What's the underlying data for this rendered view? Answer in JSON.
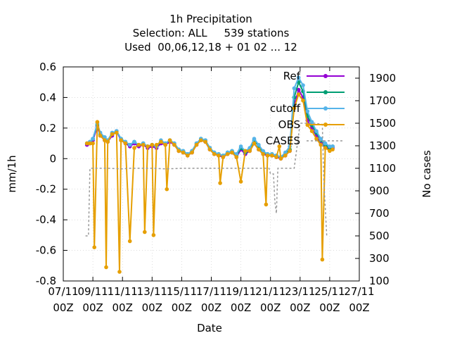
{
  "chart_data": {
    "type": "line",
    "title": [
      "1h Precipitation",
      "Selection: ALL     539 stations",
      "Used  00,06,12,18 + 01 02 ... 12"
    ],
    "xlabel": "Date",
    "ylabel": "mm/1h",
    "y2label": "No cases",
    "x_ticks": [
      {
        "day": 7,
        "line1": "07/11",
        "line2": "00Z"
      },
      {
        "day": 9,
        "line1": "09/11",
        "line2": "00Z"
      },
      {
        "day": 11,
        "line1": "11/11",
        "line2": "00Z"
      },
      {
        "day": 13,
        "line1": "13/11",
        "line2": "00Z"
      },
      {
        "day": 15,
        "line1": "15/11",
        "line2": "00Z"
      },
      {
        "day": 17,
        "line1": "17/11",
        "line2": "00Z"
      },
      {
        "day": 19,
        "line1": "19/11",
        "line2": "00Z"
      },
      {
        "day": 21,
        "line1": "21/11",
        "line2": "00Z"
      },
      {
        "day": 23,
        "line1": "23/11",
        "line2": "00Z"
      },
      {
        "day": 25,
        "line1": "25/11",
        "line2": "00Z"
      },
      {
        "day": 27,
        "line1": "27/11",
        "line2": "00Z"
      }
    ],
    "xlim": [
      7,
      27
    ],
    "ylim": [
      -0.8,
      0.6
    ],
    "y_ticks": [
      "-0.8",
      "-0.6",
      "-0.4",
      "-0.2",
      "0",
      "0.2",
      "0.4",
      "0.6"
    ],
    "y2lim": [
      100,
      2000
    ],
    "y2_ticks": [
      "100",
      "300",
      "500",
      "700",
      "900",
      "1100",
      "1300",
      "1500",
      "1700",
      "1900"
    ],
    "legend_position": "top-right",
    "series": [
      {
        "name": "Ref",
        "color": "#9400d3",
        "axis": "y",
        "x": [
          8.6,
          8.8,
          9.0,
          9.3,
          9.5,
          9.8,
          10.0,
          10.3,
          10.6,
          10.9,
          11.2,
          11.5,
          11.8,
          12.1,
          12.4,
          12.7,
          13.0,
          13.3,
          13.6,
          13.9,
          14.2,
          14.5,
          14.8,
          15.1,
          15.4,
          15.7,
          16.0,
          16.3,
          16.6,
          16.9,
          17.2,
          17.5,
          17.8,
          18.1,
          18.4,
          18.7,
          19.0,
          19.3,
          19.6,
          19.9,
          20.2,
          20.5,
          20.8,
          21.1,
          21.4,
          21.7,
          22.0,
          22.3,
          22.6,
          22.9,
          23.2,
          23.5,
          23.8,
          24.1,
          24.4,
          24.7,
          25.0,
          25.2
        ],
        "values": [
          0.09,
          0.1,
          0.12,
          0.21,
          0.15,
          0.12,
          0.11,
          0.15,
          0.18,
          0.12,
          0.1,
          0.08,
          0.1,
          0.08,
          0.09,
          0.07,
          0.08,
          0.07,
          0.1,
          0.09,
          0.11,
          0.09,
          0.05,
          0.04,
          0.02,
          0.04,
          0.09,
          0.12,
          0.11,
          0.06,
          0.03,
          0.02,
          0.01,
          0.03,
          0.04,
          0.01,
          0.06,
          0.03,
          0.05,
          0.1,
          0.06,
          0.03,
          0.02,
          0.02,
          0.01,
          0.0,
          0.02,
          0.05,
          0.35,
          0.45,
          0.4,
          0.25,
          0.2,
          0.15,
          0.1,
          0.08,
          0.06,
          0.07
        ]
      },
      {
        "name": "",
        "color": "#009e73",
        "axis": "y",
        "x": [
          8.6,
          8.8,
          9.0,
          9.3,
          9.5,
          9.8,
          10.0,
          10.3,
          10.6,
          10.9,
          11.2,
          11.5,
          11.8,
          12.1,
          12.4,
          12.7,
          13.0,
          13.3,
          13.6,
          13.9,
          14.2,
          14.5,
          14.8,
          15.1,
          15.4,
          15.7,
          16.0,
          16.3,
          16.6,
          16.9,
          17.2,
          17.5,
          17.8,
          18.1,
          18.4,
          18.7,
          19.0,
          19.3,
          19.6,
          19.9,
          20.2,
          20.5,
          20.8,
          21.1,
          21.4,
          21.7,
          22.0,
          22.3,
          22.6,
          22.9,
          23.2,
          23.5,
          23.8,
          24.1,
          24.4,
          24.7,
          25.0,
          25.2
        ],
        "values": [
          0.1,
          0.11,
          0.13,
          0.22,
          0.16,
          0.14,
          0.12,
          0.16,
          0.18,
          0.13,
          0.11,
          0.09,
          0.11,
          0.09,
          0.1,
          0.08,
          0.09,
          0.08,
          0.11,
          0.1,
          0.12,
          0.1,
          0.06,
          0.05,
          0.03,
          0.05,
          0.1,
          0.13,
          0.12,
          0.07,
          0.04,
          0.03,
          0.02,
          0.04,
          0.05,
          0.02,
          0.07,
          0.04,
          0.06,
          0.12,
          0.08,
          0.04,
          0.03,
          0.03,
          0.02,
          0.01,
          0.03,
          0.06,
          0.4,
          0.5,
          0.44,
          0.28,
          0.22,
          0.17,
          0.12,
          0.09,
          0.07,
          0.08
        ]
      },
      {
        "name": "cutoff",
        "color": "#56b4e9",
        "axis": "y",
        "x": [
          8.6,
          8.8,
          9.0,
          9.3,
          9.5,
          9.8,
          10.0,
          10.3,
          10.6,
          10.9,
          11.2,
          11.5,
          11.8,
          12.1,
          12.4,
          12.7,
          13.0,
          13.3,
          13.6,
          13.9,
          14.2,
          14.5,
          14.8,
          15.1,
          15.4,
          15.7,
          16.0,
          16.3,
          16.6,
          16.9,
          17.2,
          17.5,
          17.8,
          18.1,
          18.4,
          18.7,
          19.0,
          19.3,
          19.6,
          19.9,
          20.2,
          20.5,
          20.8,
          21.1,
          21.4,
          21.7,
          22.0,
          22.3,
          22.6,
          22.9,
          23.2,
          23.5,
          23.8,
          24.1,
          24.4,
          24.7,
          25.0,
          25.2
        ],
        "values": [
          0.1,
          0.11,
          0.13,
          0.23,
          0.17,
          0.14,
          0.12,
          0.17,
          0.18,
          0.13,
          0.11,
          0.09,
          0.11,
          0.09,
          0.1,
          0.08,
          0.09,
          0.08,
          0.12,
          0.1,
          0.12,
          0.1,
          0.06,
          0.05,
          0.03,
          0.05,
          0.1,
          0.13,
          0.12,
          0.07,
          0.04,
          0.03,
          0.02,
          0.04,
          0.05,
          0.03,
          0.08,
          0.05,
          0.07,
          0.13,
          0.09,
          0.05,
          0.03,
          0.03,
          0.02,
          0.01,
          0.04,
          0.08,
          0.46,
          0.53,
          0.48,
          0.31,
          0.24,
          0.18,
          0.13,
          0.1,
          0.08,
          0.08
        ]
      },
      {
        "name": "OBS",
        "color": "#e69f00",
        "axis": "y",
        "x": [
          8.6,
          8.8,
          9.0,
          9.1,
          9.3,
          9.5,
          9.8,
          9.9,
          10.0,
          10.3,
          10.6,
          10.8,
          10.9,
          11.2,
          11.5,
          11.8,
          12.1,
          12.4,
          12.5,
          12.7,
          13.0,
          13.1,
          13.3,
          13.6,
          13.9,
          14.0,
          14.2,
          14.5,
          14.8,
          15.1,
          15.4,
          15.7,
          16.0,
          16.3,
          16.6,
          16.9,
          17.2,
          17.5,
          17.6,
          17.8,
          18.1,
          18.4,
          18.7,
          19.0,
          19.3,
          19.6,
          19.9,
          20.2,
          20.5,
          20.7,
          20.8,
          21.1,
          21.4,
          21.6,
          21.7,
          22.0,
          22.3,
          22.6,
          22.9,
          23.2,
          23.5,
          23.8,
          24.1,
          24.4,
          24.5,
          24.7,
          25.0,
          25.2
        ],
        "values": [
          0.1,
          0.1,
          0.1,
          -0.58,
          0.24,
          0.15,
          0.12,
          -0.71,
          0.11,
          0.16,
          0.17,
          -0.74,
          0.12,
          0.1,
          -0.54,
          0.07,
          0.09,
          0.09,
          -0.48,
          0.08,
          0.09,
          -0.5,
          0.09,
          0.11,
          0.09,
          -0.2,
          0.12,
          0.09,
          0.05,
          0.04,
          0.02,
          0.04,
          0.09,
          0.12,
          0.11,
          0.06,
          0.03,
          0.02,
          -0.16,
          0.01,
          0.03,
          0.04,
          0.01,
          -0.15,
          0.05,
          0.05,
          0.1,
          0.06,
          0.03,
          -0.3,
          0.02,
          0.02,
          0.01,
          0.08,
          0.0,
          0.02,
          0.05,
          0.33,
          0.42,
          0.38,
          0.22,
          0.18,
          0.13,
          0.09,
          -0.66,
          0.07,
          0.05,
          0.06
        ]
      },
      {
        "name": "CASES",
        "color": "#999999",
        "axis": "y2",
        "dash": true,
        "x": [
          8.5,
          8.7,
          8.8,
          9.5,
          10.0,
          11.0,
          11.5,
          12.0,
          13.0,
          14.0,
          15.0,
          16.0,
          17.0,
          18.0,
          19.0,
          20.0,
          20.9,
          21.0,
          21.2,
          21.3,
          21.4,
          21.5,
          22.0,
          22.6,
          23.0,
          24.0,
          24.5,
          24.6,
          24.8
        ],
        "values": [
          500,
          500,
          1100,
          1100,
          1100,
          1095,
          1100,
          1100,
          1100,
          1095,
          1100,
          1100,
          1100,
          1100,
          1100,
          1100,
          1100,
          1050,
          1050,
          800,
          700,
          1100,
          1100,
          1100,
          1500,
          1500,
          1490,
          1000,
          500
        ]
      }
    ]
  }
}
